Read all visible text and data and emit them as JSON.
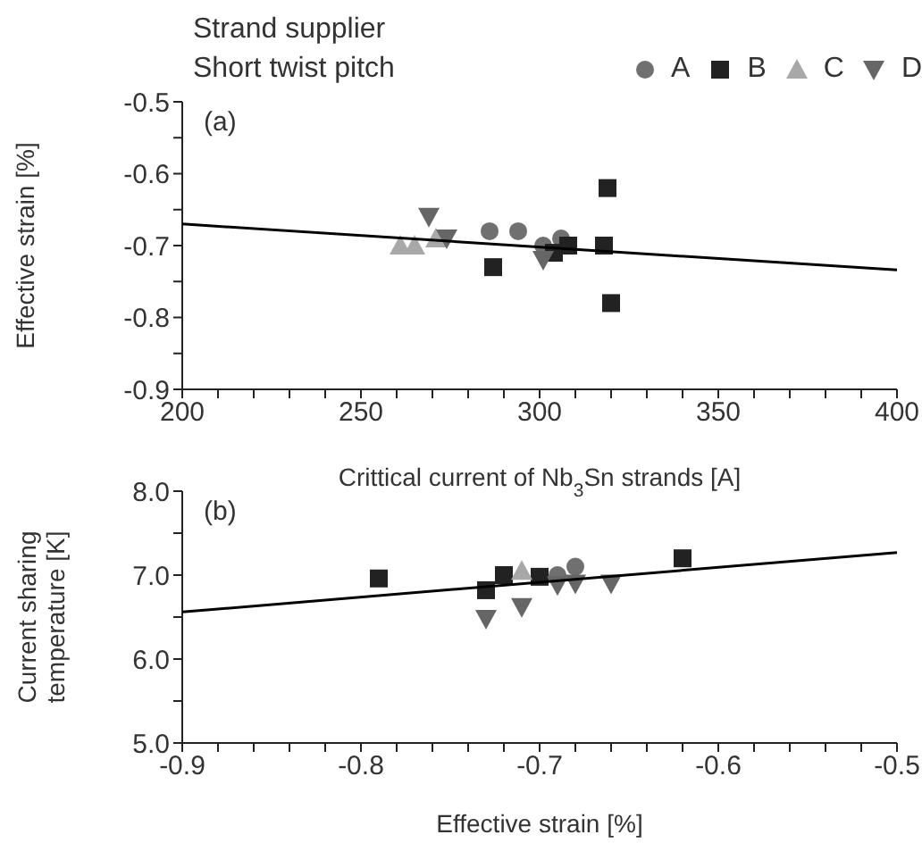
{
  "chart_data": [
    {
      "type": "scatter",
      "legend_title": "Strand supplier\nShort twist pitch",
      "legend": "top",
      "xlabel": "Crittical current of Nb$_{3}$Sn strands [A]",
      "ylabel": "Effective strain [%]",
      "annotations": [
        "(a)"
      ],
      "xlim": [
        200,
        400
      ],
      "ylim": [
        -0.9,
        -0.5
      ],
      "xticks": [
        200,
        {
          "value": 210,
          "label": null
        },
        {
          "value": 220,
          "label": null
        },
        {
          "value": 230,
          "label": null
        },
        {
          "value": 240,
          "label": null
        },
        250,
        {
          "value": 260,
          "label": null
        },
        {
          "value": 270,
          "label": null
        },
        {
          "value": 280,
          "label": null
        },
        {
          "value": 290,
          "label": null
        },
        300,
        {
          "value": 310,
          "label": null
        },
        {
          "value": 320,
          "label": null
        },
        {
          "value": 330,
          "label": null
        },
        {
          "value": 340,
          "label": null
        },
        350,
        {
          "value": 360,
          "label": null
        },
        {
          "value": 370,
          "label": null
        },
        {
          "value": 380,
          "label": null
        },
        {
          "value": 390,
          "label": null
        },
        400
      ],
      "yticks": [
        -0.9,
        {
          "value": -0.85,
          "label": null
        },
        -0.8,
        {
          "value": -0.75,
          "label": null
        },
        -0.7,
        {
          "value": -0.65,
          "label": null
        },
        -0.6,
        {
          "value": -0.55,
          "label": null
        },
        -0.5
      ],
      "series": [
        {
          "name": "A",
          "type": "scatter",
          "marker": "circle",
          "color": "#707070",
          "x": [
            286,
            294,
            301,
            306
          ],
          "values": [
            -0.68,
            -0.68,
            -0.7,
            -0.69
          ]
        },
        {
          "name": "B",
          "type": "scatter",
          "marker": "square",
          "color": "#222222",
          "x": [
            287,
            304,
            308,
            318,
            319,
            320
          ],
          "values": [
            -0.73,
            -0.71,
            -0.7,
            -0.7,
            -0.62,
            -0.78
          ]
        },
        {
          "name": "C",
          "type": "scatter",
          "marker": "triangle",
          "color": "#a8a8a8",
          "x": [
            261,
            265,
            271
          ],
          "values": [
            -0.7,
            -0.7,
            -0.69
          ]
        },
        {
          "name": "D",
          "type": "scatter",
          "marker": "triangle-down",
          "color": "#666666",
          "x": [
            269,
            274,
            301
          ],
          "values": [
            -0.66,
            -0.69,
            -0.72
          ]
        },
        {
          "type": "line",
          "marker": "none",
          "color": "#000000",
          "x": [
            200,
            400
          ],
          "values": [
            -0.67,
            -0.734
          ]
        }
      ]
    },
    {
      "type": "scatter",
      "legend": false,
      "xlabel": "Effective strain [%]",
      "ylabel": "Current sharing\ntemperature [K]",
      "annotations": [
        "(b)"
      ],
      "xlim": [
        -0.9,
        -0.5
      ],
      "ylim": [
        5,
        8
      ],
      "xticks": [
        -0.9,
        {
          "value": -0.88,
          "label": null
        },
        {
          "value": -0.86,
          "label": null
        },
        {
          "value": -0.84,
          "label": null
        },
        {
          "value": -0.82,
          "label": null
        },
        -0.8,
        {
          "value": -0.78,
          "label": null
        },
        {
          "value": -0.76,
          "label": null
        },
        {
          "value": -0.74,
          "label": null
        },
        {
          "value": -0.72,
          "label": null
        },
        -0.7,
        {
          "value": -0.68,
          "label": null
        },
        {
          "value": -0.66,
          "label": null
        },
        {
          "value": -0.64,
          "label": null
        },
        {
          "value": -0.62,
          "label": null
        },
        -0.6,
        {
          "value": -0.58,
          "label": null
        },
        {
          "value": -0.56,
          "label": null
        },
        {
          "value": -0.54,
          "label": null
        },
        {
          "value": -0.52,
          "label": null
        },
        -0.5
      ],
      "yticks": [
        {
          "value": 5,
          "label": "5.0"
        },
        {
          "value": 5.5,
          "label": null
        },
        {
          "value": 6,
          "label": "6.0"
        },
        {
          "value": 6.5,
          "label": null
        },
        {
          "value": 7,
          "label": "7.0"
        },
        {
          "value": 7.5,
          "label": null
        },
        {
          "value": 8,
          "label": "8.0"
        }
      ],
      "series": [
        {
          "type": "scatter",
          "marker": "circle",
          "color": "#707070",
          "x": [
            -0.69,
            -0.68
          ],
          "values": [
            7.0,
            7.1
          ]
        },
        {
          "type": "scatter",
          "marker": "square",
          "color": "#222222",
          "x": [
            -0.79,
            -0.73,
            -0.72,
            -0.7,
            -0.62
          ],
          "values": [
            6.96,
            6.82,
            7.0,
            6.98,
            7.2
          ]
        },
        {
          "type": "scatter",
          "marker": "triangle",
          "color": "#a8a8a8",
          "x": [
            -0.71
          ],
          "values": [
            7.05
          ]
        },
        {
          "type": "scatter",
          "marker": "triangle-down",
          "color": "#666666",
          "x": [
            -0.73,
            -0.71,
            -0.69,
            -0.68,
            -0.66
          ],
          "values": [
            6.48,
            6.62,
            6.88,
            6.9,
            6.9
          ]
        },
        {
          "type": "line",
          "marker": "none",
          "color": "#000000",
          "x": [
            -0.9,
            -0.5
          ],
          "values": [
            6.56,
            7.27
          ]
        }
      ]
    }
  ]
}
